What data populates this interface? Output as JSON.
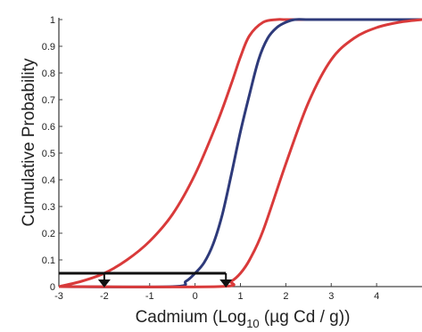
{
  "chart_data": {
    "type": "line",
    "title": "",
    "xlabel_parts": {
      "pre": "Cadmium (Log",
      "sub": "10",
      "post": " (µg Cd / g))"
    },
    "ylabel": "Cumulative Probability",
    "xlim": [
      -3,
      5
    ],
    "ylim": [
      0,
      1
    ],
    "xticks": [
      -3,
      -2,
      -1,
      0,
      1,
      2,
      3,
      4
    ],
    "yticks": [
      0,
      0.1,
      0.2,
      0.3,
      0.4,
      0.5,
      0.6,
      0.7,
      0.8,
      0.9,
      1
    ],
    "ytick_labels": [
      "0",
      "0.1",
      "0.2",
      "0.3",
      "0.4",
      "0.5",
      "0.6",
      "0.7",
      "0.8",
      "0.9",
      "1"
    ],
    "grid": false,
    "legend": "none",
    "series": [
      {
        "color": "#d93a3a",
        "x": [
          -3.0,
          -2.5,
          -2.0,
          -1.5,
          -1.0,
          -0.5,
          0.0,
          0.5,
          0.8,
          1.0,
          1.2,
          1.5,
          1.8,
          2.0,
          2.5,
          3.0,
          5.0
        ],
        "y": [
          0.0,
          0.02,
          0.05,
          0.1,
          0.17,
          0.27,
          0.42,
          0.62,
          0.76,
          0.86,
          0.94,
          0.99,
          1.0,
          1.0,
          1.0,
          1.0,
          1.0
        ]
      },
      {
        "color": "#2e3a7a",
        "x": [
          -3.0,
          -0.5,
          -0.2,
          0.0,
          0.2,
          0.4,
          0.6,
          0.8,
          1.0,
          1.2,
          1.4,
          1.6,
          1.8,
          2.0,
          2.2,
          2.5,
          3.0,
          5.0
        ],
        "y": [
          0.0,
          0.0,
          0.02,
          0.05,
          0.09,
          0.16,
          0.27,
          0.42,
          0.58,
          0.72,
          0.85,
          0.93,
          0.97,
          0.99,
          1.0,
          1.0,
          1.0,
          1.0
        ]
      },
      {
        "color": "#d93a3a",
        "x": [
          -3.0,
          0.5,
          0.8,
          1.0,
          1.2,
          1.5,
          2.0,
          2.5,
          3.0,
          3.5,
          4.0,
          4.5,
          5.0
        ],
        "y": [
          0.0,
          0.0,
          0.02,
          0.05,
          0.1,
          0.21,
          0.46,
          0.69,
          0.85,
          0.93,
          0.97,
          0.99,
          1.0
        ]
      }
    ],
    "threshold": {
      "y": 0.05,
      "x_start": -3.0,
      "x_end": 0.68
    },
    "markers": [
      {
        "x": -2.0,
        "y": 0
      },
      {
        "x": 0.68,
        "y": 0
      }
    ]
  }
}
